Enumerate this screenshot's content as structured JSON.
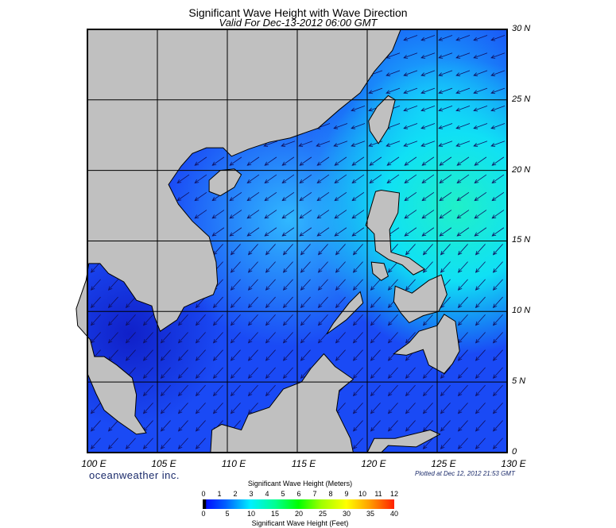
{
  "header": {
    "title": "Significant Wave Height with Wave Direction",
    "subtitle": "Valid For Dec-13-2012 06:00 GMT"
  },
  "axes": {
    "lon_labels": [
      "100 E",
      "105 E",
      "110 E",
      "115 E",
      "120 E",
      "125 E",
      "130 E"
    ],
    "lat_labels": [
      "0",
      "5 N",
      "10 N",
      "15 N",
      "20 N",
      "25 N",
      "30 N"
    ],
    "lon_range": [
      100,
      130
    ],
    "lat_range": [
      0,
      30
    ]
  },
  "footer": {
    "logo": "oceanweather inc.",
    "plotted": "Plotted at Dec 12, 2012 21:53 GMT"
  },
  "colorbar": {
    "title_meters": "Significant Wave Height (Meters)",
    "title_feet": "Significant Wave Height (Feet)",
    "meters": [
      "0",
      "1",
      "2",
      "3",
      "4",
      "5",
      "6",
      "7",
      "8",
      "9",
      "10",
      "11",
      "12"
    ],
    "feet": [
      "0",
      "5",
      "10",
      "15",
      "20",
      "25",
      "30",
      "35",
      "40"
    ]
  },
  "colors": {
    "land": "#c0c0c0",
    "ocean_low": "#1a4af5",
    "ocean_mid": "#1e9cff",
    "ocean_high": "#10f0e8"
  },
  "arrows": {
    "direction": "southwest"
  }
}
